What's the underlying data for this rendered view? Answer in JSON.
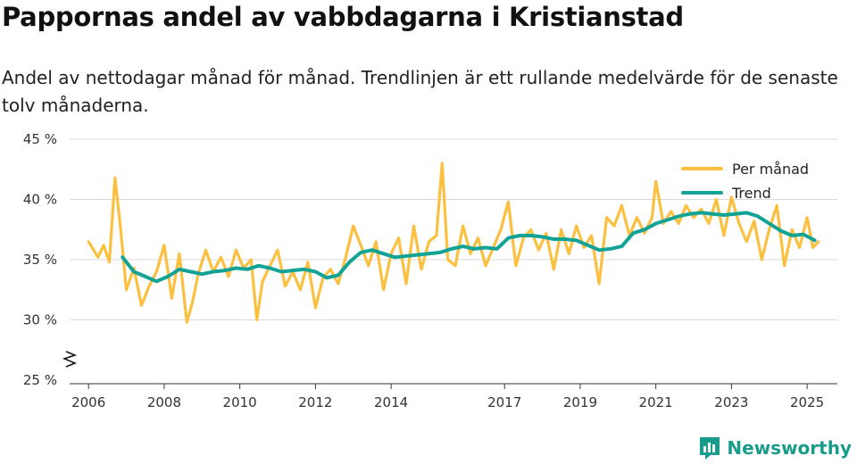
{
  "title": "Pappornas andel av vabbdagarna i Kristianstad",
  "subtitle": "Andel av nettodagar månad för månad. Trendlinjen är ett rullande medelvärde för de senaste tolv månaderna.",
  "brand": "Newsworthy",
  "colors": {
    "monthly": "#fcc041",
    "trend": "#13a396",
    "grid": "#d9d9d9",
    "brand": "#1a9c8c"
  },
  "chart_data": {
    "type": "line",
    "title": "Pappornas andel av vabbdagarna i Kristianstad",
    "xlabel": "",
    "ylabel": "",
    "ylim": [
      25,
      45
    ],
    "xlim": [
      2005.5,
      2025.8
    ],
    "y_ticks": [
      25,
      30,
      35,
      40,
      45
    ],
    "y_tick_labels": [
      "25 %",
      "30 %",
      "35 %",
      "40 %",
      "45 %"
    ],
    "x_ticks": [
      2006,
      2008,
      2010,
      2012,
      2014,
      2017,
      2019,
      2021,
      2023,
      2025
    ],
    "x_tick_labels": [
      "2006",
      "2008",
      "2010",
      "2012",
      "2014",
      "2017",
      "2019",
      "2021",
      "2023",
      "2025"
    ],
    "legend": [
      "Per månad",
      "Trend"
    ],
    "legend_position": "top-right",
    "series": [
      {
        "name": "Per månad",
        "x": [
          2006.0,
          2006.25,
          2006.4,
          2006.55,
          2006.7,
          2006.85,
          2007.0,
          2007.2,
          2007.4,
          2007.6,
          2007.8,
          2008.0,
          2008.2,
          2008.4,
          2008.6,
          2008.75,
          2008.9,
          2009.1,
          2009.3,
          2009.5,
          2009.7,
          2009.9,
          2010.1,
          2010.3,
          2010.45,
          2010.6,
          2010.8,
          2011.0,
          2011.2,
          2011.4,
          2011.6,
          2011.8,
          2012.0,
          2012.2,
          2012.4,
          2012.6,
          2012.8,
          2013.0,
          2013.2,
          2013.4,
          2013.6,
          2013.8,
          2014.0,
          2014.2,
          2014.4,
          2014.6,
          2014.8,
          2015.0,
          2015.2,
          2015.35,
          2015.5,
          2015.7,
          2015.9,
          2016.1,
          2016.3,
          2016.5,
          2016.7,
          2016.9,
          2017.1,
          2017.3,
          2017.5,
          2017.7,
          2017.9,
          2018.1,
          2018.3,
          2018.5,
          2018.7,
          2018.9,
          2019.1,
          2019.3,
          2019.5,
          2019.7,
          2019.9,
          2020.1,
          2020.3,
          2020.5,
          2020.7,
          2020.9,
          2021.0,
          2021.2,
          2021.4,
          2021.6,
          2021.8,
          2022.0,
          2022.2,
          2022.4,
          2022.6,
          2022.8,
          2023.0,
          2023.2,
          2023.4,
          2023.6,
          2023.8,
          2024.0,
          2024.2,
          2024.4,
          2024.6,
          2024.8,
          2025.0,
          2025.15,
          2025.3
        ],
        "values": [
          36.5,
          35.2,
          36.2,
          34.8,
          41.8,
          37.5,
          32.5,
          34.3,
          31.2,
          32.8,
          34.0,
          36.2,
          31.8,
          35.5,
          29.8,
          31.5,
          33.8,
          35.8,
          34.0,
          35.2,
          33.6,
          35.8,
          34.3,
          35.0,
          30.0,
          33.2,
          34.5,
          35.8,
          32.8,
          34.0,
          32.5,
          34.8,
          31.0,
          33.5,
          34.2,
          33.0,
          35.2,
          37.8,
          36.2,
          34.5,
          36.5,
          32.5,
          35.5,
          36.8,
          33.0,
          37.8,
          34.2,
          36.5,
          37.0,
          43.0,
          35.0,
          34.5,
          37.8,
          35.5,
          36.8,
          34.5,
          36.0,
          37.5,
          39.8,
          34.5,
          36.8,
          37.5,
          35.8,
          37.2,
          34.2,
          37.5,
          35.5,
          37.8,
          36.0,
          37.0,
          33.0,
          38.5,
          37.8,
          39.5,
          37.0,
          38.5,
          37.2,
          38.5,
          41.5,
          38.0,
          39.0,
          38.0,
          39.5,
          38.5,
          39.2,
          38.0,
          40.0,
          37.0,
          40.2,
          38.0,
          36.5,
          38.2,
          35.0,
          37.5,
          39.5,
          34.5,
          37.5,
          36.0,
          38.5,
          36.0,
          36.5
        ]
      },
      {
        "name": "Trend",
        "x": [
          2006.9,
          2007.2,
          2007.5,
          2007.8,
          2008.1,
          2008.4,
          2008.7,
          2009.0,
          2009.3,
          2009.6,
          2009.9,
          2010.2,
          2010.5,
          2010.8,
          2011.1,
          2011.4,
          2011.7,
          2012.0,
          2012.3,
          2012.6,
          2012.9,
          2013.2,
          2013.5,
          2013.8,
          2014.1,
          2014.4,
          2014.7,
          2015.0,
          2015.3,
          2015.6,
          2015.9,
          2016.2,
          2016.5,
          2016.8,
          2017.1,
          2017.4,
          2017.7,
          2018.0,
          2018.3,
          2018.6,
          2018.9,
          2019.2,
          2019.5,
          2019.8,
          2020.1,
          2020.4,
          2020.7,
          2021.0,
          2021.3,
          2021.6,
          2021.9,
          2022.2,
          2022.5,
          2022.8,
          2023.1,
          2023.4,
          2023.7,
          2024.0,
          2024.3,
          2024.6,
          2024.9,
          2025.2
        ],
        "values": [
          35.2,
          34.0,
          33.6,
          33.2,
          33.6,
          34.2,
          34.0,
          33.8,
          34.0,
          34.1,
          34.3,
          34.2,
          34.5,
          34.3,
          34.0,
          34.1,
          34.2,
          34.0,
          33.5,
          33.7,
          34.8,
          35.6,
          35.8,
          35.5,
          35.2,
          35.3,
          35.4,
          35.5,
          35.6,
          35.9,
          36.1,
          35.9,
          36.0,
          35.9,
          36.8,
          37.0,
          37.0,
          36.9,
          36.7,
          36.7,
          36.6,
          36.2,
          35.8,
          35.9,
          36.1,
          37.2,
          37.5,
          38.0,
          38.3,
          38.6,
          38.8,
          38.9,
          38.8,
          38.7,
          38.8,
          38.9,
          38.6,
          38.0,
          37.4,
          37.0,
          37.1,
          36.6
        ]
      }
    ]
  }
}
